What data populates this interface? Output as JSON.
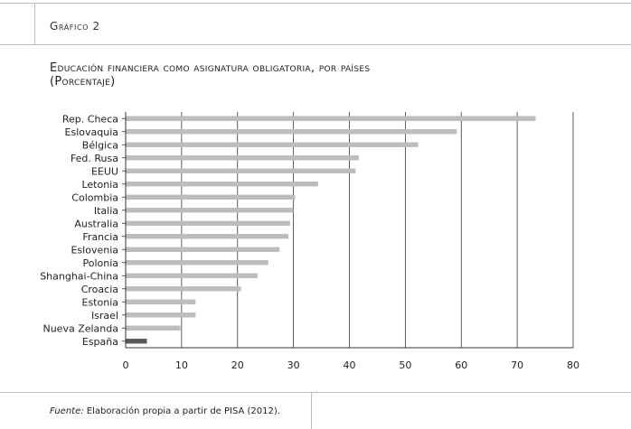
{
  "header": {
    "label": "Gráfico 2"
  },
  "title": {
    "line1": "Educación financiera como asignatura obligatoria, por países",
    "line2": "(Porcentaje)"
  },
  "footer": {
    "source_label": "Fuente:",
    "source_text": " Elaboración propia a partir de PISA (2012)."
  },
  "colors": {
    "bar": "#bdbdbd",
    "highlight": "#595959",
    "axis": "#333333",
    "grid": "#333333"
  },
  "chart_data": {
    "type": "bar",
    "orientation": "horizontal",
    "categories": [
      "Rep. Checa",
      "Eslovaquia",
      "Bélgica",
      "Fed. Rusa",
      "EEUU",
      "Letonia",
      "Colombia",
      "Italia",
      "Australia",
      "Francia",
      "Eslovenia",
      "Polonia",
      "Shanghai-China",
      "Croacia",
      "Estonia",
      "Israel",
      "Nueva Zelanda",
      "España"
    ],
    "values": [
      73.3,
      59.2,
      52.3,
      41.7,
      41.1,
      34.4,
      30.3,
      30.0,
      29.4,
      29.1,
      27.5,
      25.5,
      23.6,
      20.6,
      12.5,
      12.5,
      9.8,
      3.8
    ],
    "highlight": "España",
    "xlim": [
      0,
      80
    ],
    "xticks": [
      0,
      10,
      20,
      30,
      40,
      50,
      60,
      70,
      80
    ],
    "grid": true
  }
}
